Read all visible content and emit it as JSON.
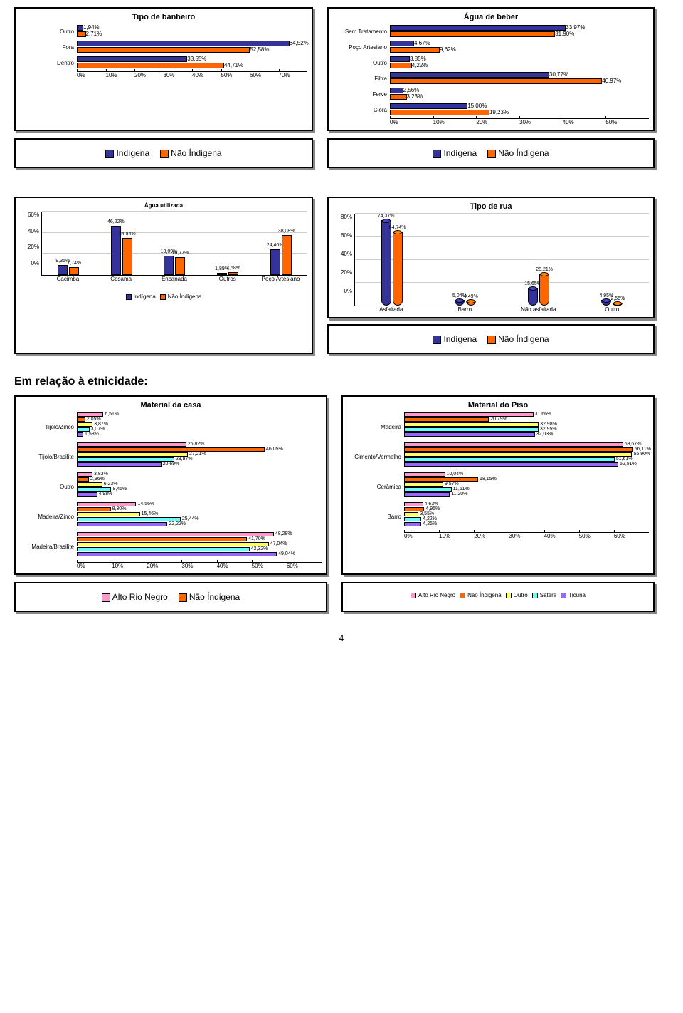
{
  "colors": {
    "indigena": "#333399",
    "nao_indigena": "#ff6600",
    "grid": "#cccccc",
    "alto_rio_negro": "#ff99cc",
    "outro": "#ffff66",
    "satere": "#66ffff",
    "ticuna": "#9966ff"
  },
  "chart1": {
    "title": "Tipo de banheiro",
    "type": "horizontal-bar-3d",
    "categories": [
      "Outro",
      "Fora",
      "Dentro"
    ],
    "series": [
      {
        "name": "Indígena",
        "color": "#333399",
        "values": [
          1.94,
          64.52,
          33.55
        ],
        "labels": [
          "1,94%",
          "64,52%",
          "33,55%"
        ]
      },
      {
        "name": "Não Índigena",
        "color": "#ff6600",
        "values": [
          2.71,
          52.58,
          44.71
        ],
        "labels": [
          "2,71%",
          "52,58%",
          "44,71%"
        ]
      }
    ],
    "xlim": [
      0,
      70
    ],
    "xtick_step": 10,
    "xticks": [
      "0%",
      "10%",
      "20%",
      "30%",
      "40%",
      "50%",
      "60%",
      "70%"
    ]
  },
  "chart2": {
    "title": "Água de beber",
    "type": "horizontal-bar-3d",
    "categories": [
      "Sem Tratamento",
      "Poço Artesiano",
      "Outro",
      "Filtra",
      "Ferve",
      "Clora"
    ],
    "series": [
      {
        "name": "Indígena",
        "color": "#333399",
        "values": [
          33.97,
          4.67,
          3.85,
          30.77,
          2.56,
          15.0
        ],
        "labels": [
          "33,97%",
          "4,67%",
          "3,85%",
          "30,77%",
          "2,56%",
          "15,00%"
        ]
      },
      {
        "name": "Não Índigena",
        "color": "#ff6600",
        "values": [
          31.9,
          9.62,
          4.22,
          40.97,
          3.23,
          19.23
        ],
        "labels": [
          "31,90%",
          "9,62%",
          "4,22%",
          "40,97%",
          "3,23%",
          "19,23%"
        ]
      }
    ],
    "xlim": [
      0,
      50
    ],
    "xtick_step": 10,
    "xticks": [
      "0%",
      "10%",
      "20%",
      "30%",
      "40%",
      "50%"
    ]
  },
  "legend_top": {
    "items": [
      {
        "label": "Indígena",
        "color": "#333399"
      },
      {
        "label": "Não Índigena",
        "color": "#ff6600"
      }
    ]
  },
  "chart3": {
    "title": "Água utilizada",
    "type": "vertical-bar",
    "categories": [
      "Cacimba",
      "Cosama",
      "Encanada",
      "Outros",
      "Poço Artesiano"
    ],
    "series": [
      {
        "name": "Indígena",
        "color": "#333399",
        "values": [
          9.35,
          46.22,
          18.09,
          1.89,
          24.46
        ],
        "labels": [
          "9,35%",
          "46,22%",
          "18,09%",
          "1,89%",
          "24,46%"
        ]
      },
      {
        "name": "Não Índigena",
        "color": "#ff6600",
        "values": [
          7.74,
          34.84,
          16.77,
          2.58,
          38.08
        ],
        "labels": [
          "7,74%",
          "34,84%",
          "16,77%",
          "2,58%",
          "38,08%"
        ]
      }
    ],
    "ylim": [
      0,
      60
    ],
    "ytick_step": 20,
    "yticks": [
      "0%",
      "20%",
      "40%",
      "60%"
    ]
  },
  "chart4": {
    "title": "Tipo de rua",
    "type": "vertical-bar-3d-cylinder",
    "categories": [
      "Asfaltada",
      "Barro",
      "Não asfaltada",
      "Outro"
    ],
    "series": [
      {
        "name": "Indígena",
        "color": "#333399",
        "values": [
          74.37,
          5.04,
          15.65,
          4.95
        ],
        "labels": [
          "74,37%",
          "5,04%",
          "15,65%",
          "4,95%"
        ]
      },
      {
        "name": "Não Índigena",
        "color": "#ff6600",
        "values": [
          64.74,
          4.49,
          28.21,
          2.56
        ],
        "labels": [
          "64,74%",
          "4,49%",
          "28,21%",
          "2,56%"
        ]
      }
    ],
    "ylim": [
      0,
      80
    ],
    "ytick_step": 20,
    "yticks": [
      "0%",
      "20%",
      "40%",
      "60%",
      "80%"
    ]
  },
  "heading": "Em relação à etnicidade:",
  "chart5": {
    "title": "Material da casa",
    "type": "horizontal-bar-5series",
    "categories": [
      "Tijolo/Zinco",
      "Tijolo/Brasilite",
      "Outro",
      "Madeira/Zinco",
      "Madeira/Brasilite"
    ],
    "series": [
      {
        "name": "Alto Rio Negro",
        "color": "#ff99cc",
        "values": [
          6.51,
          26.82,
          3.83,
          14.56,
          48.28
        ],
        "labels": [
          "6,51%",
          "26,82%",
          "3,83%",
          "14,56%",
          "48,28%"
        ]
      },
      {
        "name": "Não Índigena",
        "color": "#ff6600",
        "values": [
          2.05,
          46.05,
          2.96,
          8.3,
          41.7
        ],
        "labels": [
          "2,05%",
          "46,05%",
          "2,96%",
          "8,30%",
          "41,70%"
        ]
      },
      {
        "name": "Outro",
        "color": "#ffff66",
        "values": [
          3.87,
          27.21,
          6.23,
          15.46,
          47.04
        ],
        "labels": [
          "3,87%",
          "27,21%",
          "6,23%",
          "15,46%",
          "47,04%"
        ]
      },
      {
        "name": "Satere",
        "color": "#66ffff",
        "values": [
          3.07,
          23.87,
          8.45,
          25.44,
          42.32
        ],
        "labels": [
          "3,07%",
          "23,87%",
          "8,45%",
          "25,44%",
          "42,32%"
        ]
      },
      {
        "name": "Ticuna",
        "color": "#9966ff",
        "values": [
          1.58,
          20.69,
          4.98,
          22.22,
          49.04
        ],
        "labels": [
          "1,58%",
          "20,69%",
          "4,98%",
          "22,22%",
          "49,04%"
        ]
      }
    ],
    "xlim": [
      0,
      60
    ],
    "xtick_step": 10,
    "xticks": [
      "0%",
      "10%",
      "20%",
      "30%",
      "40%",
      "50%",
      "60%"
    ]
  },
  "chart6": {
    "title": "Material do Piso",
    "type": "horizontal-bar-5series",
    "categories": [
      "Madeira",
      "Cimento/Vermelho",
      "Cerâmica",
      "Barro"
    ],
    "series": [
      {
        "name": "Alto Rio Negro",
        "color": "#ff99cc",
        "values": [
          31.66,
          53.67,
          10.04,
          4.63
        ],
        "labels": [
          "31,66%",
          "53,67%",
          "10,04%",
          "4,63%"
        ]
      },
      {
        "name": "Não Índigena",
        "color": "#ff6600",
        "values": [
          20.79,
          56.11,
          18.15,
          4.95
        ],
        "labels": [
          "20,79%",
          "56,11%",
          "18,15%",
          "4,95%"
        ]
      },
      {
        "name": "Outro",
        "color": "#ffff66",
        "values": [
          32.98,
          55.9,
          9.57,
          3.55
        ],
        "labels": [
          "32,98%",
          "55,90%",
          "9,57%",
          "3,55%"
        ]
      },
      {
        "name": "Satere",
        "color": "#66ffff",
        "values": [
          32.95,
          51.61,
          11.61,
          4.22
        ],
        "labels": [
          "32,95%",
          "51,61%",
          "11,61%",
          "4,22%"
        ]
      },
      {
        "name": "Ticuna",
        "color": "#9966ff",
        "values": [
          32.03,
          52.51,
          11.2,
          4.25
        ],
        "labels": [
          "32,03%",
          "52,51%",
          "11,20%",
          "4,25%"
        ]
      }
    ],
    "xlim": [
      0,
      60
    ],
    "xtick_step": 10,
    "xticks": [
      "0%",
      "10%",
      "20%",
      "30%",
      "40%",
      "50%",
      "60%"
    ]
  },
  "legend_bottom_left": {
    "items": [
      {
        "label": "Alto Rio Negro",
        "color": "#ff99cc"
      },
      {
        "label": "Não Índigena",
        "color": "#ff6600"
      }
    ]
  },
  "legend_bottom_right": {
    "items": [
      {
        "label": "Alto Rio Negro",
        "color": "#ff99cc"
      },
      {
        "label": "Não Índigena",
        "color": "#ff6600"
      },
      {
        "label": "Outro",
        "color": "#ffff66"
      },
      {
        "label": "Satere",
        "color": "#66ffff"
      },
      {
        "label": "Ticuna",
        "color": "#9966ff"
      }
    ]
  },
  "page_number": "4"
}
